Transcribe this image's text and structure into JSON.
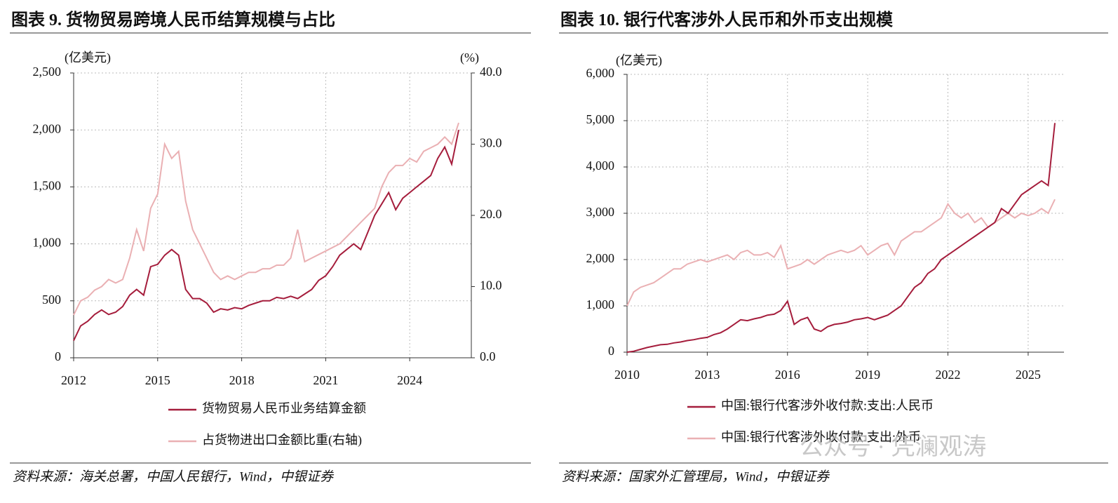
{
  "chart_data": [
    {
      "type": "line",
      "title": "图表 9. 货物贸易跨境人民币结算规模与占比",
      "y_label": "(亿美元)",
      "y2_label": "(%)",
      "source": "资料来源：海关总署，中国人民银行，Wind，中银证券",
      "x": [
        2012,
        2012.25,
        2012.5,
        2012.75,
        2013,
        2013.25,
        2013.5,
        2013.75,
        2014,
        2014.25,
        2014.5,
        2014.75,
        2015,
        2015.25,
        2015.5,
        2015.75,
        2016,
        2016.25,
        2016.5,
        2016.75,
        2017,
        2017.25,
        2017.5,
        2017.75,
        2018,
        2018.25,
        2018.5,
        2018.75,
        2019,
        2019.25,
        2019.5,
        2019.75,
        2020,
        2020.25,
        2020.5,
        2020.75,
        2021,
        2021.25,
        2021.5,
        2021.75,
        2022,
        2022.25,
        2022.5,
        2022.75,
        2023,
        2023.25,
        2023.5,
        2023.75,
        2024,
        2024.25,
        2024.5,
        2024.75,
        2025,
        2025.25,
        2025.5,
        2025.75
      ],
      "xlim": [
        2012,
        2026.2
      ],
      "xticks": [
        2012,
        2015,
        2018,
        2021,
        2024
      ],
      "ylim": [
        0,
        2500
      ],
      "yticks": [
        0,
        500,
        {
          "value": 1000,
          "label": "1,000"
        },
        {
          "value": 1500,
          "label": "1,500"
        },
        {
          "value": 2000,
          "label": "2,000"
        },
        {
          "value": 2500,
          "label": "2,500"
        }
      ],
      "y2lim": [
        0,
        40
      ],
      "y2ticks": [
        {
          "value": 0,
          "label": "0.0"
        },
        {
          "value": 10,
          "label": "10.0"
        },
        {
          "value": 20,
          "label": "20.0"
        },
        {
          "value": 30,
          "label": "30.0"
        },
        {
          "value": 40,
          "label": "40.0"
        }
      ],
      "grid": true,
      "series": [
        {
          "name": "货物贸易人民币业务结算金额",
          "color": "#a51d3c",
          "values": [
            150,
            280,
            320,
            380,
            420,
            380,
            400,
            450,
            550,
            600,
            550,
            800,
            820,
            900,
            950,
            900,
            600,
            520,
            520,
            480,
            400,
            430,
            420,
            440,
            430,
            460,
            480,
            500,
            500,
            530,
            520,
            540,
            520,
            560,
            600,
            680,
            720,
            800,
            900,
            950,
            1000,
            950,
            1100,
            1250,
            1350,
            1450,
            1300,
            1400,
            1450,
            1500,
            1550,
            1600,
            1750,
            1850,
            1700,
            2000
          ]
        },
        {
          "name": "占货物进出口金额比重(右轴)",
          "color": "#eab0b3",
          "axis": "y2",
          "values": [
            6,
            8,
            8.5,
            9.5,
            10,
            11,
            10.5,
            11,
            14,
            18,
            15,
            21,
            23,
            30,
            28,
            29,
            22,
            18,
            16,
            14,
            12,
            11,
            11.5,
            11,
            11.5,
            12,
            12,
            12.5,
            12.5,
            13,
            13,
            14,
            18,
            13.5,
            14,
            14.5,
            15,
            15.5,
            16,
            17,
            18,
            19,
            20,
            21,
            24,
            26,
            27,
            27,
            28,
            27.5,
            29,
            29.5,
            30,
            31,
            30,
            33
          ]
        }
      ]
    },
    {
      "type": "line",
      "title": "图表 10. 银行代客涉外人民币和外币支出规模",
      "y_label": "(亿美元)",
      "source": "资料来源：国家外汇管理局，Wind，中银证券",
      "x": [
        2010,
        2010.25,
        2010.5,
        2010.75,
        2011,
        2011.25,
        2011.5,
        2011.75,
        2012,
        2012.25,
        2012.5,
        2012.75,
        2013,
        2013.25,
        2013.5,
        2013.75,
        2014,
        2014.25,
        2014.5,
        2014.75,
        2015,
        2015.25,
        2015.5,
        2015.75,
        2016,
        2016.25,
        2016.5,
        2016.75,
        2017,
        2017.25,
        2017.5,
        2017.75,
        2018,
        2018.25,
        2018.5,
        2018.75,
        2019,
        2019.25,
        2019.5,
        2019.75,
        2020,
        2020.25,
        2020.5,
        2020.75,
        2021,
        2021.25,
        2021.5,
        2021.75,
        2022,
        2022.25,
        2022.5,
        2022.75,
        2023,
        2023.25,
        2023.5,
        2023.75,
        2024,
        2024.25,
        2024.5,
        2024.75,
        2025,
        2025.25,
        2025.5,
        2025.75,
        2026
      ],
      "xlim": [
        2010,
        2026.34
      ],
      "xticks": [
        2010,
        2013,
        2016,
        2019,
        2022,
        2025
      ],
      "ylim": [
        0,
        6000
      ],
      "yticks": [
        0,
        {
          "value": 1000,
          "label": "1,000"
        },
        {
          "value": 2000,
          "label": "2,000"
        },
        {
          "value": 3000,
          "label": "3,000"
        },
        {
          "value": 4000,
          "label": "4,000"
        },
        {
          "value": 5000,
          "label": "5,000"
        },
        {
          "value": 6000,
          "label": "6,000"
        }
      ],
      "grid": true,
      "series": [
        {
          "name": "中国:银行代客涉外收付款:支出:人民币",
          "color": "#a51d3c",
          "values": [
            0,
            20,
            60,
            100,
            130,
            160,
            170,
            200,
            220,
            250,
            270,
            300,
            320,
            380,
            420,
            500,
            600,
            700,
            680,
            720,
            750,
            800,
            820,
            900,
            1100,
            600,
            700,
            750,
            500,
            450,
            550,
            600,
            620,
            650,
            700,
            720,
            750,
            700,
            750,
            800,
            900,
            1000,
            1200,
            1400,
            1500,
            1700,
            1800,
            2000,
            2100,
            2200,
            2300,
            2400,
            2500,
            2600,
            2700,
            2800,
            3100,
            3000,
            3200,
            3400,
            3500,
            3600,
            3700,
            3600,
            4950
          ]
        },
        {
          "name": "中国:银行代客涉外收付款:支出:外币",
          "color": "#eab0b3",
          "values": [
            1000,
            1300,
            1400,
            1450,
            1500,
            1600,
            1700,
            1800,
            1800,
            1900,
            1950,
            2000,
            1950,
            2000,
            2050,
            2100,
            2000,
            2150,
            2200,
            2100,
            2100,
            2150,
            2050,
            2300,
            1800,
            1850,
            1900,
            2000,
            1900,
            2000,
            2100,
            2150,
            2200,
            2150,
            2200,
            2300,
            2100,
            2200,
            2300,
            2350,
            2100,
            2400,
            2500,
            2600,
            2600,
            2700,
            2800,
            2900,
            3200,
            3000,
            2900,
            3000,
            2800,
            2900,
            2700,
            2800,
            2900,
            3000,
            2900,
            3000,
            2950,
            3000,
            3100,
            3000,
            3300
          ]
        }
      ]
    }
  ],
  "watermark": "公众号 · 凭澜观涛"
}
